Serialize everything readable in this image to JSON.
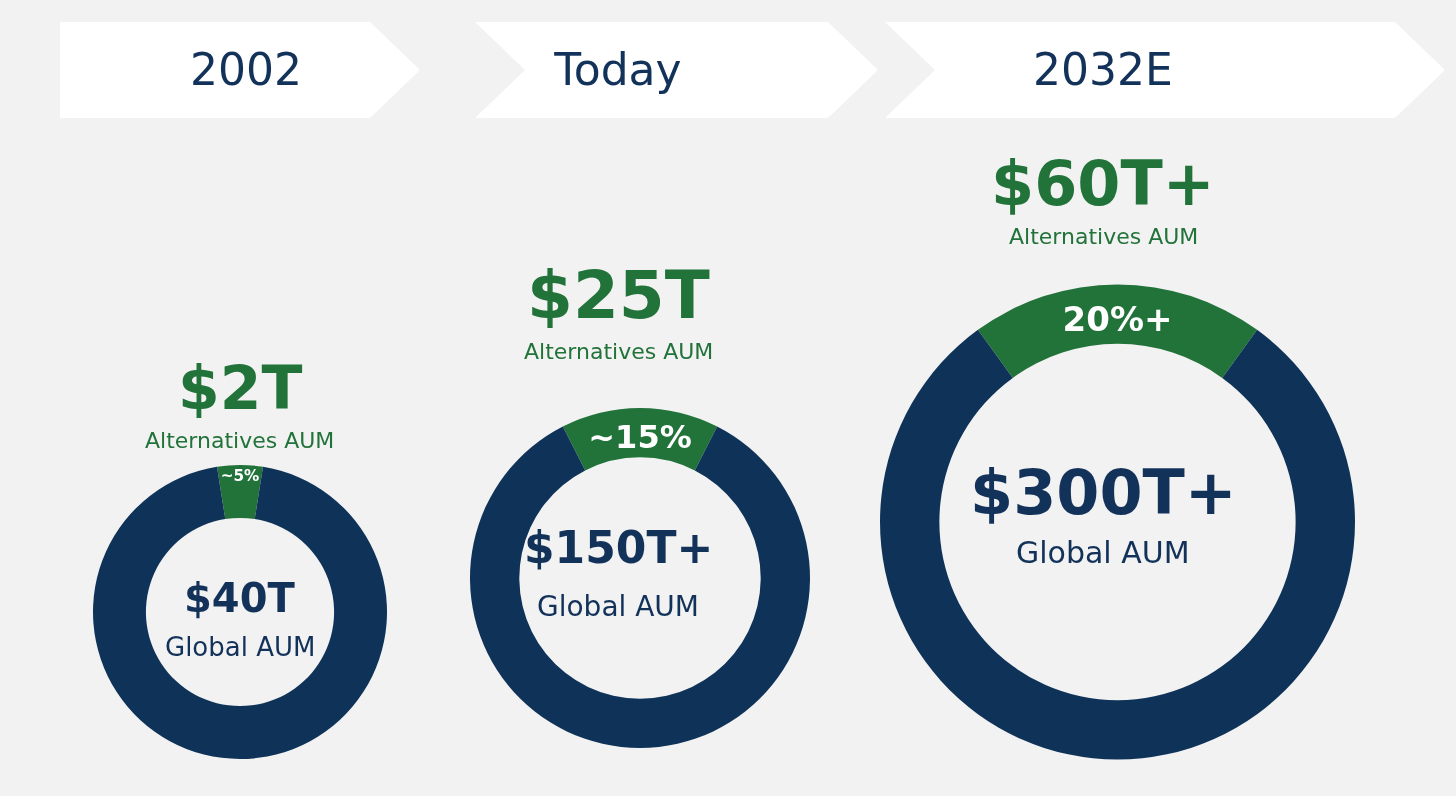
{
  "chart_data": [
    {
      "type": "donut",
      "title": "2002",
      "categories": [
        null,
        null
      ],
      "values": [
        5,
        95
      ],
      "colors": [
        "#22733a",
        "#0f3358"
      ],
      "value_labels": [
        "~5%",
        null
      ],
      "legend": false,
      "annotations": [
        "$2T",
        "Alternatives AUM",
        "$40T",
        "Global AUM"
      ]
    },
    {
      "type": "donut",
      "title": "Today",
      "categories": [
        null,
        null
      ],
      "values": [
        15,
        85
      ],
      "colors": [
        "#22733a",
        "#0f3358"
      ],
      "value_labels": [
        "~15%",
        null
      ],
      "legend": false,
      "annotations": [
        "$25T",
        "Alternatives AUM",
        "$150T+",
        "Global AUM"
      ]
    },
    {
      "type": "donut",
      "title": "2032E",
      "categories": [
        null,
        null
      ],
      "values": [
        20,
        80
      ],
      "colors": [
        "#22733a",
        "#0f3358"
      ],
      "value_labels": [
        "20%+",
        null
      ],
      "legend": false,
      "annotations": [
        "$60T+",
        "Alternatives AUM",
        "$300T+",
        "Global AUM"
      ]
    }
  ]
}
